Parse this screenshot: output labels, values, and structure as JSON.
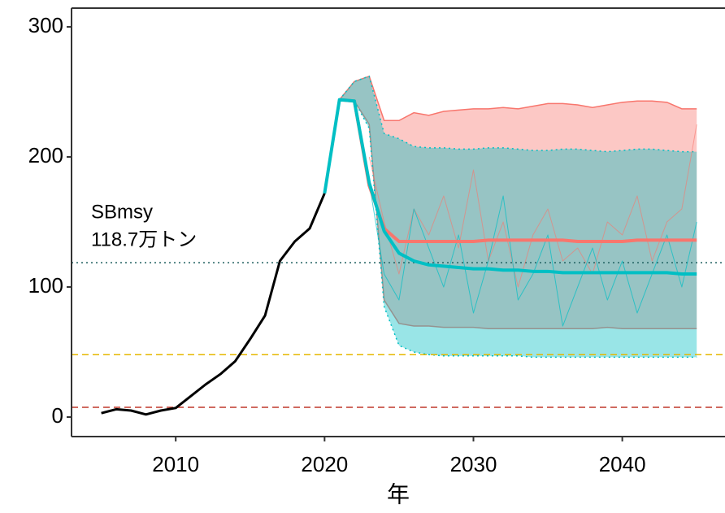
{
  "chart_data": {
    "type": "line",
    "xlabel": "年",
    "annotations": [
      "SBmsy",
      "118.7万トン"
    ],
    "xlim": [
      2003,
      2046.9
    ],
    "ylim": [
      -15,
      314.4
    ],
    "xticks": [
      2010,
      2020,
      2030,
      2040
    ],
    "yticks": [
      0,
      100,
      200,
      300
    ],
    "grid": false,
    "hlines": [
      {
        "value": 118.7,
        "color": "#1f5f5f",
        "dash": "dotted"
      },
      {
        "value": 48,
        "color": "#e6b800",
        "dash": "dashed"
      },
      {
        "value": 7.5,
        "color": "#c0392b",
        "dash": "dashed"
      }
    ],
    "bands": [
      {
        "color": "#f8766d",
        "border": "solid",
        "x": [
          2021,
          2022,
          2023,
          2024,
          2025,
          2026,
          2027,
          2028,
          2029,
          2030,
          2031,
          2032,
          2033,
          2034,
          2035,
          2036,
          2037,
          2038,
          2039,
          2040,
          2041,
          2042,
          2043,
          2044,
          2045
        ],
        "upper": [
          244,
          258,
          262,
          228,
          228,
          234,
          232,
          235,
          236,
          237,
          237,
          238,
          237,
          239,
          241,
          241,
          240,
          238,
          240,
          242,
          243,
          243,
          242,
          237,
          237
        ],
        "lower": [
          244,
          243,
          225,
          90,
          72,
          70,
          70,
          69,
          69,
          69,
          68,
          68,
          68,
          68,
          68,
          68,
          68,
          68,
          69,
          68,
          68,
          68,
          68,
          68,
          68
        ]
      },
      {
        "color": "#00bfc4",
        "border": "dotted",
        "x": [
          2021,
          2022,
          2023,
          2024,
          2025,
          2026,
          2027,
          2028,
          2029,
          2030,
          2031,
          2032,
          2033,
          2034,
          2035,
          2036,
          2037,
          2038,
          2039,
          2040,
          2041,
          2042,
          2043,
          2044,
          2045
        ],
        "upper": [
          244,
          258,
          262,
          218,
          214,
          208,
          207,
          207,
          206,
          206,
          207,
          207,
          206,
          205,
          205,
          206,
          206,
          205,
          204,
          205,
          206,
          206,
          205,
          204,
          204
        ],
        "lower": [
          244,
          243,
          222,
          85,
          55,
          50,
          48,
          47,
          47,
          47,
          47,
          47,
          47,
          46,
          46,
          46,
          46,
          46,
          46,
          46,
          46,
          46,
          46,
          46,
          46
        ]
      }
    ],
    "series": [
      {
        "color": "#f8766d",
        "width": 1,
        "opacity": 0.6,
        "x": [
          2023,
          2024,
          2025,
          2026,
          2027,
          2028,
          2029,
          2030,
          2031,
          2032,
          2033,
          2034,
          2035,
          2036,
          2037,
          2038,
          2039,
          2040,
          2041,
          2042,
          2043,
          2044,
          2045
        ],
        "values": [
          200,
          150,
          110,
          160,
          140,
          170,
          130,
          190,
          120,
          150,
          100,
          140,
          160,
          120,
          130,
          110,
          150,
          140,
          170,
          120,
          150,
          160,
          225
        ]
      },
      {
        "color": "#00bfc4",
        "width": 1,
        "opacity": 0.7,
        "x": [
          2023,
          2024,
          2025,
          2026,
          2027,
          2028,
          2029,
          2030,
          2031,
          2032,
          2033,
          2034,
          2035,
          2036,
          2037,
          2038,
          2039,
          2040,
          2041,
          2042,
          2043,
          2044,
          2045
        ],
        "values": [
          180,
          110,
          90,
          160,
          130,
          100,
          140,
          80,
          120,
          170,
          90,
          110,
          140,
          70,
          100,
          130,
          90,
          120,
          80,
          110,
          140,
          100,
          150
        ]
      },
      {
        "color": "#000000",
        "width": 3,
        "opacity": 1,
        "x": [
          2005,
          2006,
          2007,
          2008,
          2009,
          2010,
          2011,
          2012,
          2013,
          2014,
          2015,
          2016,
          2017,
          2018,
          2019,
          2020
        ],
        "values": [
          3,
          6,
          5,
          2,
          5,
          7,
          16,
          25,
          33,
          43,
          60,
          78,
          120,
          135,
          145,
          172
        ]
      },
      {
        "color": "#f8766d",
        "width": 4,
        "opacity": 1,
        "x": [
          2021,
          2022,
          2023,
          2024,
          2025,
          2026,
          2027,
          2028,
          2029,
          2030,
          2031,
          2032,
          2033,
          2034,
          2035,
          2036,
          2037,
          2038,
          2039,
          2040,
          2041,
          2042,
          2043,
          2044,
          2045
        ],
        "values": [
          244,
          243,
          178,
          145,
          135,
          135,
          135,
          135,
          135,
          135,
          136,
          136,
          136,
          136,
          136,
          136,
          135,
          135,
          135,
          135,
          136,
          136,
          136,
          136,
          136
        ]
      },
      {
        "color": "#00bfc4",
        "width": 4,
        "opacity": 1,
        "x": [
          2020,
          2021,
          2022,
          2023,
          2024,
          2025,
          2026,
          2027,
          2028,
          2029,
          2030,
          2031,
          2032,
          2033,
          2034,
          2035,
          2036,
          2037,
          2038,
          2039,
          2040,
          2041,
          2042,
          2043,
          2044,
          2045
        ],
        "values": [
          172,
          244,
          243,
          180,
          143,
          126,
          120,
          117,
          116,
          115,
          114,
          114,
          113,
          113,
          112,
          112,
          111,
          111,
          111,
          111,
          111,
          111,
          111,
          111,
          110,
          110
        ]
      }
    ]
  }
}
